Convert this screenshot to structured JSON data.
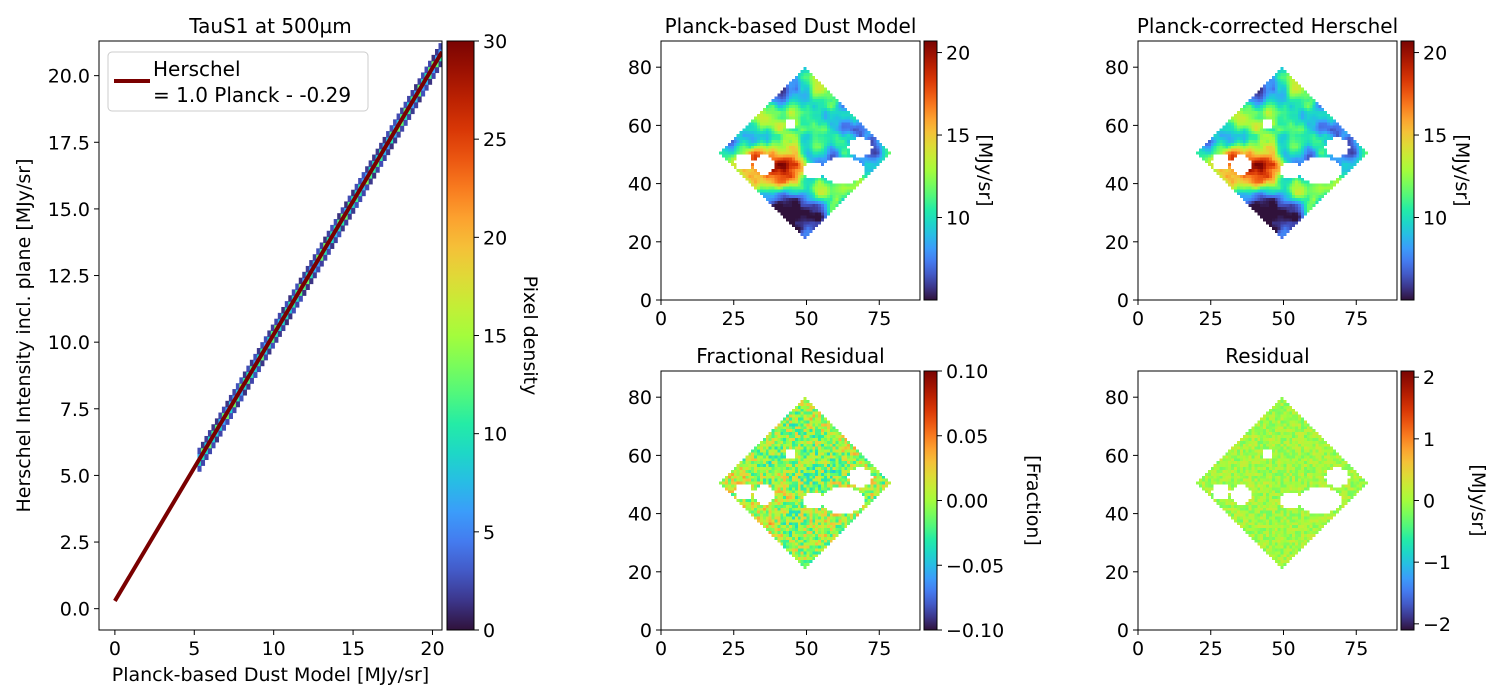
{
  "chart_data": [
    {
      "type": "heatmap",
      "panel": "scatter-density",
      "title": "TauS1 at 500µm",
      "xlabel": "Planck-based Dust Model [MJy/sr]",
      "ylabel": "Herschel Intensity incl. plane [MJy/sr]",
      "xlim": [
        -1.0,
        20.6
      ],
      "ylim": [
        -0.8,
        21.3
      ],
      "xticks": [
        0,
        5,
        10,
        15,
        20
      ],
      "yticks": [
        0.0,
        2.5,
        5.0,
        7.5,
        10.0,
        12.5,
        15.0,
        17.5,
        20.0
      ],
      "yticklabels": [
        "0.0",
        "2.5",
        "5.0",
        "7.5",
        "10.0",
        "12.5",
        "15.0",
        "17.5",
        "20.0"
      ],
      "density_band": {
        "x_range": [
          5.2,
          20.6
        ],
        "slope": 1.0,
        "intercept": 0.29
      },
      "fit_line": {
        "slope": 1.0,
        "intercept": 0.29,
        "x_range": [
          0,
          20.6
        ],
        "color": "#7a0000"
      },
      "legend": {
        "placement": "top-left",
        "line1": "Herschel",
        "line2": "= 1.0 Planck - -0.29"
      },
      "colorbar": {
        "label": "Pixel density",
        "range": [
          0,
          30
        ],
        "ticks": [
          0,
          5,
          10,
          15,
          20,
          25,
          30
        ],
        "colormap": "turbo"
      }
    },
    {
      "type": "heatmap",
      "panel": "map",
      "title": "Planck-based Dust Model",
      "xticks": [
        0,
        25,
        50,
        75
      ],
      "yticks": [
        0,
        20,
        40,
        60,
        80
      ],
      "xlim": [
        0,
        89
      ],
      "ylim": [
        0,
        89
      ],
      "colorbar": {
        "label": "[MJy/sr]",
        "range": [
          5,
          20.7
        ],
        "ticks": [
          10,
          15,
          20
        ],
        "colormap": "turbo"
      }
    },
    {
      "type": "heatmap",
      "panel": "map",
      "title": "Planck-corrected Herschel",
      "xticks": [
        0,
        25,
        50,
        75
      ],
      "yticks": [
        0,
        20,
        40,
        60,
        80
      ],
      "xlim": [
        0,
        89
      ],
      "ylim": [
        0,
        89
      ],
      "colorbar": {
        "label": "[MJy/sr]",
        "range": [
          5,
          20.7
        ],
        "ticks": [
          10,
          15,
          20
        ],
        "colormap": "turbo"
      }
    },
    {
      "type": "heatmap",
      "panel": "map",
      "title": "Fractional Residual",
      "xticks": [
        0,
        25,
        50,
        75
      ],
      "yticks": [
        0,
        20,
        40,
        60,
        80
      ],
      "xlim": [
        0,
        89
      ],
      "ylim": [
        0,
        89
      ],
      "colorbar": {
        "label": "[Fraction]",
        "range": [
          -0.1,
          0.1
        ],
        "ticks": [
          -0.1,
          -0.05,
          0.0,
          0.05,
          0.1
        ],
        "ticklabels": [
          "−0.10",
          "−0.05",
          "0.00",
          "0.05",
          "0.10"
        ],
        "colormap": "turbo"
      }
    },
    {
      "type": "heatmap",
      "panel": "map",
      "title": "Residual",
      "xticks": [
        0,
        25,
        50,
        75
      ],
      "yticks": [
        0,
        20,
        40,
        60,
        80
      ],
      "xlim": [
        0,
        89
      ],
      "ylim": [
        0,
        89
      ],
      "colorbar": {
        "label": "[MJy/sr]",
        "range": [
          -2.1,
          2.1
        ],
        "ticks": [
          -2,
          -1,
          0,
          1,
          2
        ],
        "ticklabels": [
          "−2",
          "−1",
          "0",
          "1",
          "2"
        ],
        "colormap": "turbo"
      }
    }
  ]
}
